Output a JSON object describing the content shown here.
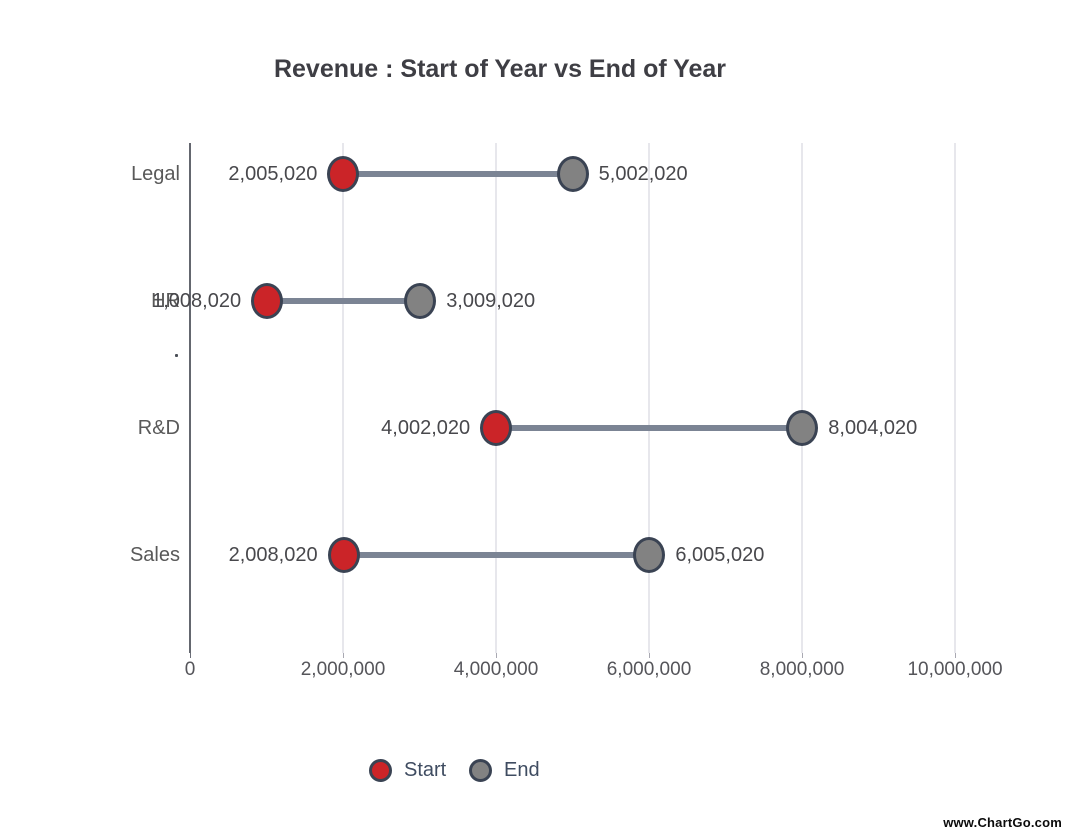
{
  "title": "Revenue : Start of Year vs End of Year",
  "watermark": "www.ChartGo.com",
  "legend": {
    "items": [
      {
        "label": "Start",
        "color": "#cb2428"
      },
      {
        "label": "End",
        "color": "#828282"
      }
    ]
  },
  "colors": {
    "start_fill": "#cb2428",
    "end_fill": "#828282",
    "marker_border": "#3a4353",
    "connector": "#7b8494",
    "axis_line": "#64676f",
    "gridline": "#e7e7ec",
    "title_text": "#3e3e44",
    "category_text": "#595959",
    "value_text": "#48484c",
    "tick_text": "#55555a",
    "legend_text": "#3f4c61"
  },
  "chart_data": {
    "type": "scatter",
    "subtype": "dumbbell",
    "title": "Revenue : Start of Year vs End of Year",
    "categories": [
      "Legal",
      "HR",
      "R&D",
      "Sales"
    ],
    "series": [
      {
        "name": "Start",
        "values": [
          2005020,
          1008020,
          4002020,
          2008020
        ]
      },
      {
        "name": "End",
        "values": [
          5002020,
          3009020,
          8004020,
          6005020
        ]
      }
    ],
    "value_labels": {
      "Start": [
        "2,005,020",
        "1,008,020",
        "4,002,020",
        "2,008,020"
      ],
      "End": [
        "5,002,020",
        "3,009,020",
        "8,004,020",
        "6,005,020"
      ]
    },
    "x_ticks": [
      0,
      2000000,
      4000000,
      6000000,
      8000000,
      10000000
    ],
    "x_tick_labels": [
      "0",
      "2,000,000",
      "4,000,000",
      "6,000,000",
      "8,000,000",
      "10,000,000"
    ],
    "xlim": [
      0,
      10000000
    ],
    "grid": "vertical",
    "legend_position": "bottom"
  }
}
